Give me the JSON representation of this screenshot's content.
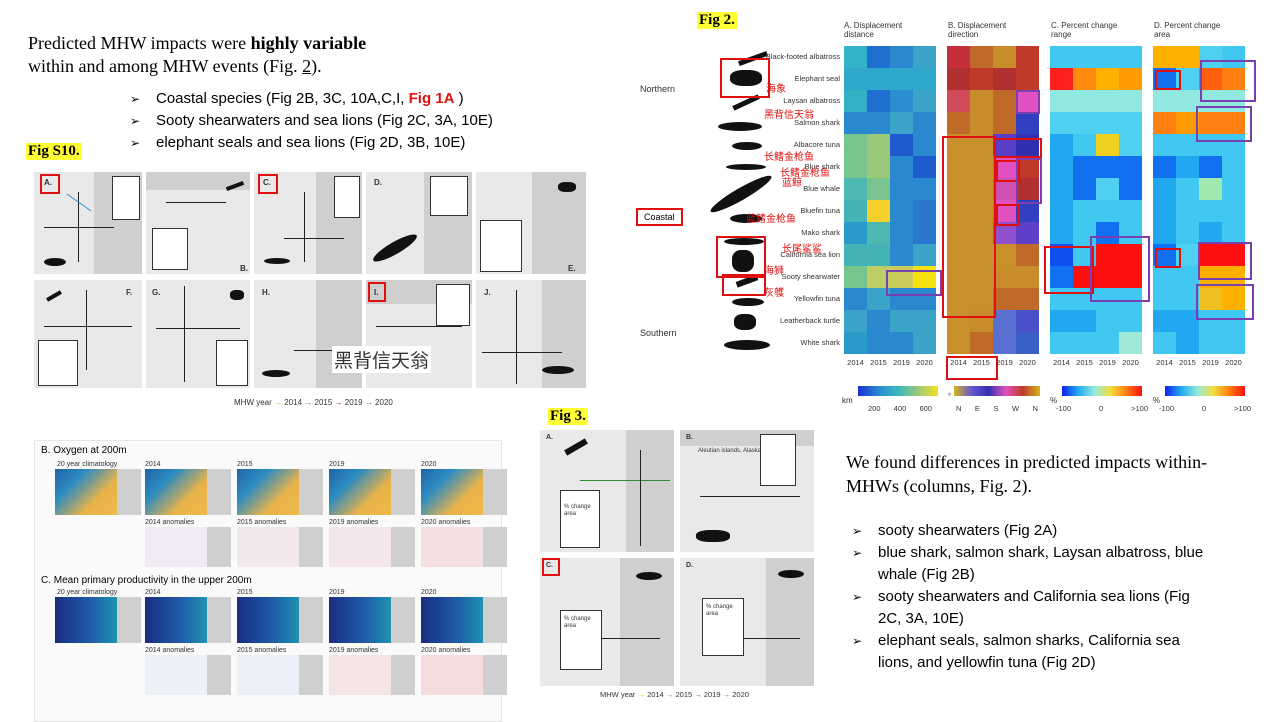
{
  "intro": {
    "line1_pre": "Predicted MHW impacts were ",
    "line1_bold": "highly variable",
    "line2": "within and among MHW events (Fig. ",
    "line2_link": "2",
    "line2_post": ").",
    "bullets": [
      {
        "text": "Coastal species (Fig 2B, 3C, 10A,C,I,  ",
        "red": "Fig 1A",
        "post": " )"
      },
      {
        "text": "Sooty shearwaters and sea lions (Fig 2C, 3A, 10E)"
      },
      {
        "text": "elephant seals and sea lions (Fig 2D, 3B, 10E)"
      }
    ]
  },
  "figs10": {
    "label": "Fig S10.",
    "panels": [
      "A.",
      "B.",
      "C.",
      "D.",
      "E.",
      "F.",
      "G.",
      "H.",
      "I.",
      "J."
    ],
    "legend_title": "MHW year",
    "years": [
      "2014",
      "2015",
      "2019",
      "2020"
    ],
    "annotation": "黑背信天翁"
  },
  "fig2": {
    "label": "Fig 2.",
    "columns": [
      "A. Displacement distance",
      "B. Displacement direction",
      "C. Percent change range",
      "D. Percent change area"
    ],
    "groups": [
      "Northern",
      "Coastal",
      "Southern"
    ],
    "species": [
      "Black-footed albatross",
      "Elephant seal",
      "Laysan albatross",
      "Salmon shark",
      "Albacore tuna",
      "Blue shark",
      "Blue whale",
      "Bluefin tuna",
      "Mako shark",
      "California sea lion",
      "Sooty shearwater",
      "Yellowfin tuna",
      "Leatherback turtle",
      "White shark"
    ],
    "years": [
      "2014",
      "2015",
      "2019",
      "2020"
    ],
    "zh_labels": [
      "海象",
      "黑背信天翁",
      "长鳍金枪鱼",
      "长鳍金枪鱼",
      "蓝鲸",
      "蓝鳍金枪鱼",
      "长尾鲨鲨",
      "海狮",
      "灰鹱"
    ],
    "scale_a_unit": "km",
    "scale_a_ticks": [
      "200",
      "400",
      "600"
    ],
    "scale_b_unit": "°",
    "scale_b_ticks": [
      "N",
      "E",
      "S",
      "W",
      "N"
    ],
    "scale_c_unit": "%",
    "scale_c_ticks": [
      "-100",
      "0",
      ">100"
    ],
    "scale_d_unit": "%",
    "scale_d_ticks": [
      "-100",
      "0",
      ">100"
    ]
  },
  "ocean": {
    "title_b": "B. Oxygen at 200m",
    "title_c": "C. Mean primary productivity in the upper 200m",
    "clim": "20 year climatology",
    "years": [
      "2014",
      "2015",
      "2019",
      "2020"
    ],
    "anoms": [
      "2014 anomalies",
      "2015 anomalies",
      "2019 anomalies",
      "2020 anomalies"
    ]
  },
  "fig3": {
    "label": "Fig 3.",
    "panels": [
      "A.",
      "B.",
      "C.",
      "D."
    ],
    "aleutian": "Aleutian islands, Alaska",
    "change_area": "% change area",
    "legend_title": "MHW year",
    "years": [
      "2014",
      "2015",
      "2019",
      "2020"
    ]
  },
  "findings": {
    "title": "We found differences in predicted impacts within-MHWs (columns, Fig. 2).",
    "bullets": [
      "sooty shearwaters (Fig 2A)",
      "blue shark, salmon shark, Laysan albatross, blue whale (Fig 2B)",
      "sooty shearwaters and California sea lions (Fig 2C, 3A, 10E)",
      "elephant seals, salmon sharks, California sea lions, and yellowfin tuna (Fig 2D)"
    ]
  },
  "colors": {
    "y2014": "#f2c200",
    "y2015": "#2a8fd6",
    "y2019": "#8b1a2b",
    "y2020": "#2e8b2e",
    "annot_red": "#e01010",
    "annot_purple": "#7a3fb0",
    "highlight": "#ffff33"
  }
}
